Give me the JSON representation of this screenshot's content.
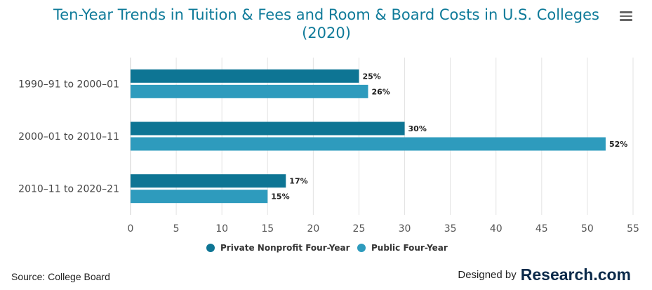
{
  "chart_data": {
    "type": "bar",
    "orientation": "horizontal",
    "title": "Ten-Year Trends in Tuition & Fees and Room & Board Costs in U.S. Colleges (2020)",
    "categories": [
      "1990–91 to 2000–01",
      "2000–01 to 2010–11",
      "2010–11 to 2020–21"
    ],
    "series": [
      {
        "name": "Private Nonprofit Four-Year",
        "color": "#0e7594",
        "values": [
          25,
          30,
          17
        ],
        "labels": [
          "25%",
          "30%",
          "17%"
        ]
      },
      {
        "name": "Public Four-Year",
        "color": "#2e9bbd",
        "values": [
          26,
          52,
          15
        ],
        "labels": [
          "26%",
          "52%",
          "15%"
        ]
      }
    ],
    "xlim": [
      0,
      55
    ],
    "xticks": [
      0,
      5,
      10,
      15,
      20,
      25,
      30,
      35,
      40,
      45,
      50,
      55
    ],
    "grid": true,
    "legend": "bottom"
  },
  "source_text": "Source: College Board",
  "credit": {
    "prefix": "Designed by",
    "brand": "Research.com"
  }
}
